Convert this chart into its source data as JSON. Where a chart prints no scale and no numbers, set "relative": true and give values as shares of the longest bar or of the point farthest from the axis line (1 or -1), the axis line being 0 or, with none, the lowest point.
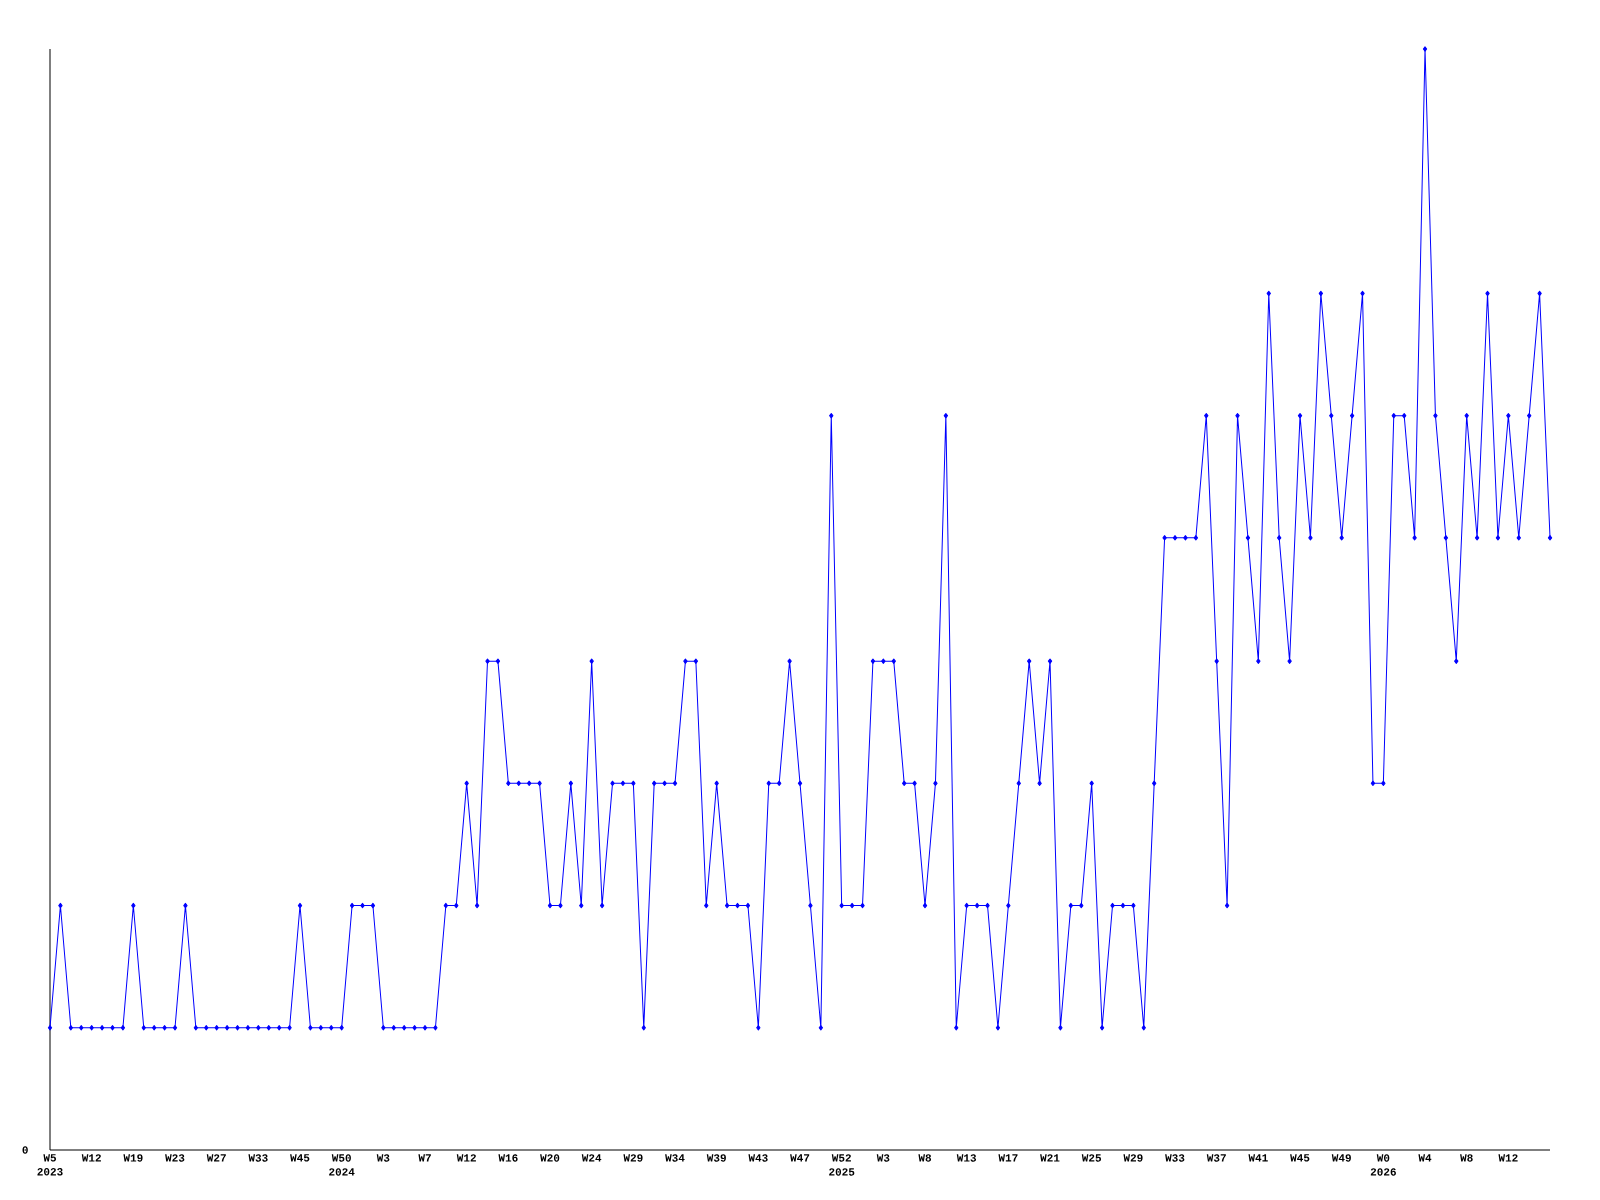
{
  "chart_data": {
    "type": "line",
    "relative": true,
    "color": "#0000ff",
    "marker": "diamond",
    "line_style": "solid",
    "categories": [
      "W5 2023",
      null,
      null,
      null,
      "W12",
      null,
      null,
      null,
      "W19",
      null,
      null,
      null,
      "W23",
      null,
      null,
      null,
      "W27",
      null,
      null,
      null,
      "W33",
      null,
      null,
      null,
      "W45",
      null,
      null,
      null,
      "W50 2024",
      null,
      null,
      null,
      "W3",
      null,
      null,
      null,
      "W7",
      null,
      null,
      null,
      "W12",
      null,
      null,
      null,
      "W16",
      null,
      null,
      null,
      "W20",
      null,
      null,
      null,
      "W24",
      null,
      null,
      null,
      "W29",
      null,
      null,
      null,
      "W34",
      null,
      null,
      null,
      "W39",
      null,
      null,
      null,
      "W43",
      null,
      null,
      null,
      "W47",
      null,
      null,
      null,
      "W52 2025",
      null,
      null,
      null,
      "W3",
      null,
      null,
      null,
      "W8",
      null,
      null,
      null,
      "W13",
      null,
      null,
      null,
      "W17",
      null,
      null,
      null,
      "W21",
      null,
      null,
      null,
      "W25",
      null,
      null,
      null,
      "W29",
      null,
      null,
      null,
      "W33",
      null,
      null,
      null,
      "W37",
      null,
      null,
      null,
      "W41",
      null,
      null,
      null,
      "W45",
      null,
      null,
      null,
      "W49",
      null,
      null,
      null,
      "W0 2026",
      null,
      null,
      null,
      "W4",
      null,
      null,
      null,
      "W8",
      null,
      null,
      null,
      "W12",
      null,
      null,
      null,
      null
    ],
    "values": [
      0.111,
      0.222,
      0.111,
      0.111,
      0.111,
      0.111,
      0.111,
      0.111,
      0.222,
      0.111,
      0.111,
      0.111,
      0.111,
      0.222,
      0.111,
      0.111,
      0.111,
      0.111,
      0.111,
      0.111,
      0.111,
      0.111,
      0.111,
      0.111,
      0.222,
      0.111,
      0.111,
      0.111,
      0.111,
      0.222,
      0.222,
      0.222,
      0.111,
      0.111,
      0.111,
      0.111,
      0.111,
      0.111,
      0.222,
      0.222,
      0.333,
      0.222,
      0.444,
      0.444,
      0.333,
      0.333,
      0.333,
      0.333,
      0.222,
      0.222,
      0.333,
      0.222,
      0.444,
      0.222,
      0.333,
      0.333,
      0.333,
      0.111,
      0.333,
      0.333,
      0.333,
      0.444,
      0.444,
      0.222,
      0.333,
      0.222,
      0.222,
      0.222,
      0.111,
      0.333,
      0.333,
      0.444,
      0.333,
      0.222,
      0.111,
      0.667,
      0.222,
      0.222,
      0.222,
      0.444,
      0.444,
      0.444,
      0.333,
      0.333,
      0.222,
      0.333,
      0.667,
      0.111,
      0.222,
      0.222,
      0.222,
      0.111,
      0.222,
      0.333,
      0.444,
      0.333,
      0.444,
      0.111,
      0.222,
      0.222,
      0.333,
      0.111,
      0.222,
      0.222,
      0.222,
      0.111,
      0.333,
      0.556,
      0.556,
      0.556,
      0.556,
      0.667,
      0.444,
      0.222,
      0.667,
      0.556,
      0.444,
      0.778,
      0.556,
      0.444,
      0.667,
      0.556,
      0.778,
      0.667,
      0.556,
      0.667,
      0.778,
      0.333,
      0.333,
      0.667,
      0.667,
      0.556,
      1,
      0.667,
      0.556,
      0.444,
      0.667,
      0.556,
      0.778,
      0.556,
      0.667,
      0.556,
      0.667,
      0.778,
      0.556
    ],
    "annotations": [
      "0"
    ]
  }
}
